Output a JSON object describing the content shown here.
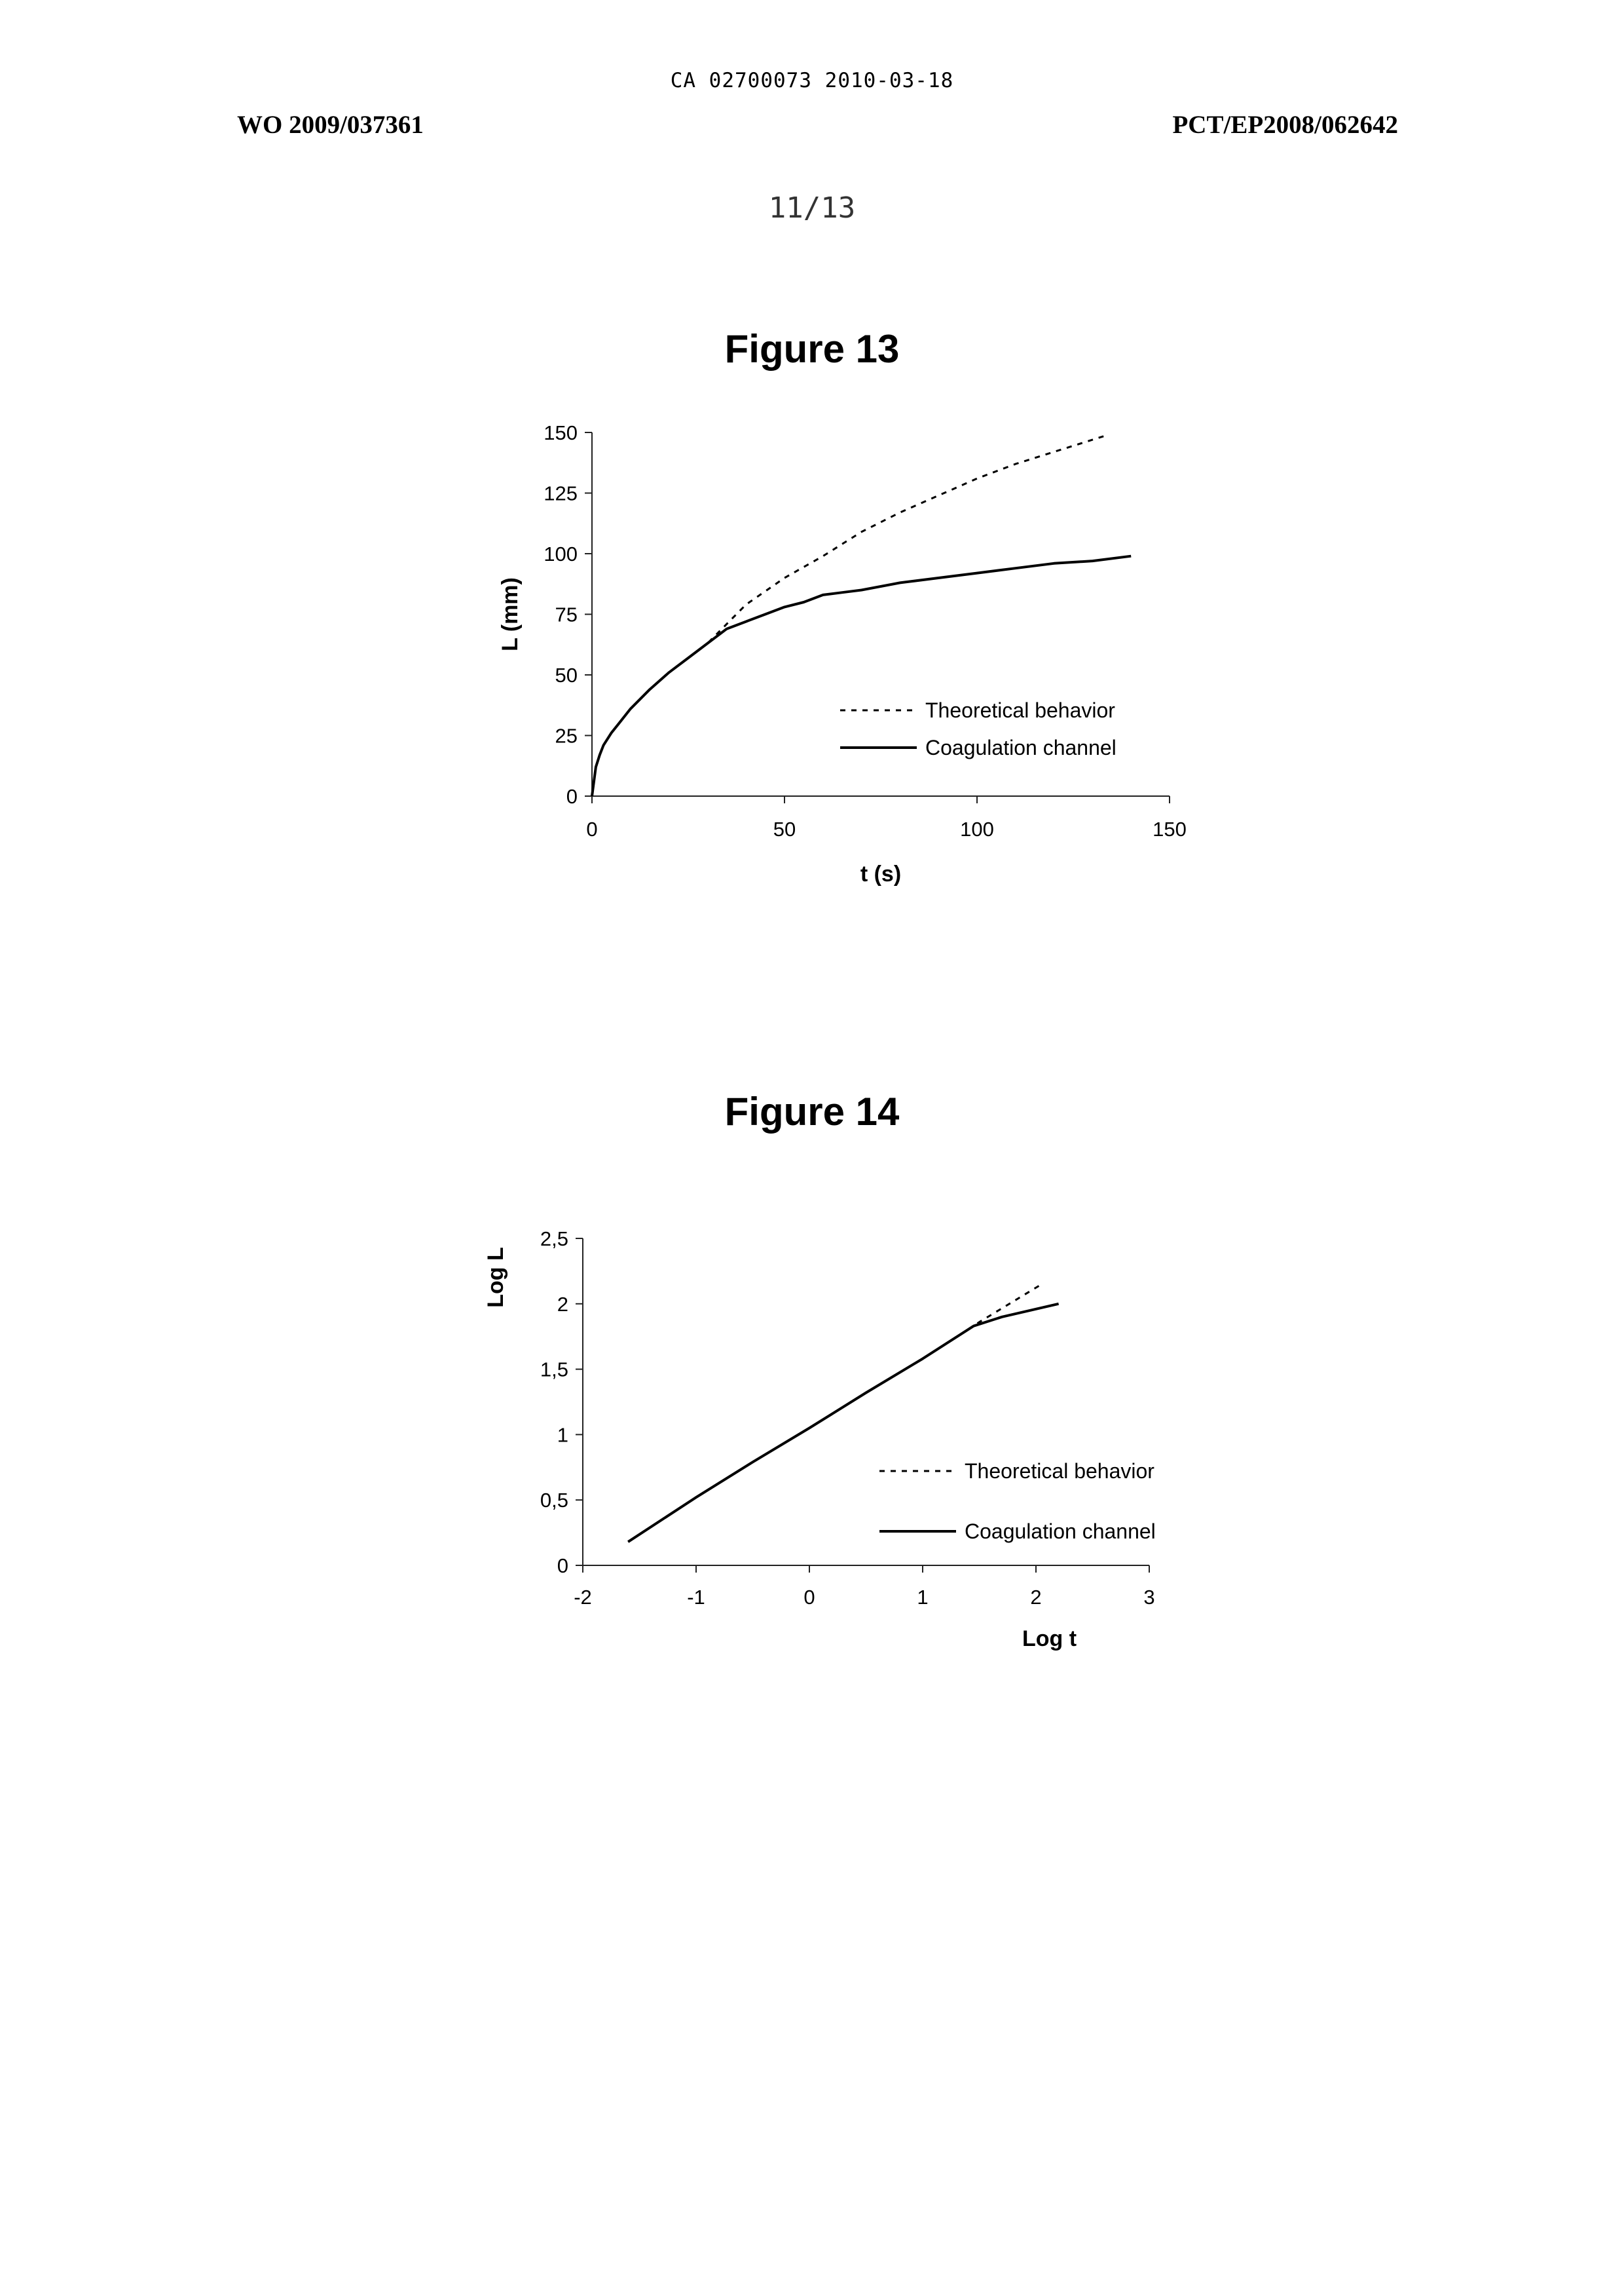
{
  "header": {
    "top_line": "CA 02700073 2010-03-18",
    "left": "WO 2009/037361",
    "right": "PCT/EP2008/062642",
    "page_number": "11/13"
  },
  "figures": [
    {
      "title": "Figure 13"
    },
    {
      "title": "Figure 14"
    }
  ],
  "chart_data": [
    {
      "type": "line",
      "title": "Figure 13",
      "xlabel": "t (s)",
      "ylabel": "L (mm)",
      "xlim": [
        0,
        150
      ],
      "ylim": [
        0,
        150
      ],
      "x_ticks": [
        "0",
        "50",
        "100",
        "150"
      ],
      "y_ticks": [
        "0",
        "25",
        "50",
        "75",
        "100",
        "125",
        "150"
      ],
      "grid": false,
      "legend_position": "bottom-right",
      "series": [
        {
          "name": "Theoretical behavior",
          "style": "dashed",
          "x": [
            0,
            1,
            2,
            3,
            5,
            7,
            10,
            15,
            20,
            25,
            30,
            40,
            50,
            60,
            70,
            80,
            90,
            100,
            110,
            120,
            130,
            134
          ],
          "y": [
            0,
            12,
            17,
            21,
            26,
            30,
            36,
            44,
            51,
            57,
            63,
            79,
            90,
            99,
            109,
            117,
            124,
            131,
            137,
            142,
            147,
            149
          ]
        },
        {
          "name": "Coagulation channel",
          "style": "solid",
          "x": [
            0,
            1,
            2,
            3,
            5,
            7,
            10,
            15,
            20,
            25,
            30,
            35,
            40,
            45,
            50,
            55,
            60,
            65,
            70,
            80,
            90,
            100,
            110,
            120,
            130,
            140
          ],
          "y": [
            0,
            12,
            17,
            21,
            26,
            30,
            36,
            44,
            51,
            57,
            63,
            69,
            72,
            75,
            78,
            80,
            83,
            84,
            85,
            88,
            90,
            92,
            94,
            96,
            97,
            99
          ]
        }
      ]
    },
    {
      "type": "line",
      "title": "Figure 14",
      "xlabel": "Log t",
      "ylabel": "Log L",
      "xlim": [
        -2,
        3
      ],
      "ylim": [
        0,
        2.5
      ],
      "x_ticks": [
        "-2",
        "-1",
        "0",
        "1",
        "2",
        "3"
      ],
      "y_ticks": [
        "0",
        "0,5",
        "1",
        "1,5",
        "2",
        "2,5"
      ],
      "grid": false,
      "legend_position": "bottom-right",
      "series": [
        {
          "name": "Theoretical behavior",
          "style": "dashed",
          "x": [
            -1.6,
            -1.0,
            -0.5,
            0,
            0.5,
            1.0,
            1.5,
            2.05
          ],
          "y": [
            0.18,
            0.52,
            0.79,
            1.05,
            1.32,
            1.58,
            1.86,
            2.15
          ]
        },
        {
          "name": "Coagulation channel",
          "style": "solid",
          "x": [
            -1.6,
            -1.0,
            -0.5,
            0,
            0.5,
            1.0,
            1.45,
            1.7,
            2.0,
            2.2
          ],
          "y": [
            0.18,
            0.52,
            0.79,
            1.05,
            1.32,
            1.58,
            1.83,
            1.9,
            1.96,
            2.0
          ]
        }
      ]
    }
  ]
}
